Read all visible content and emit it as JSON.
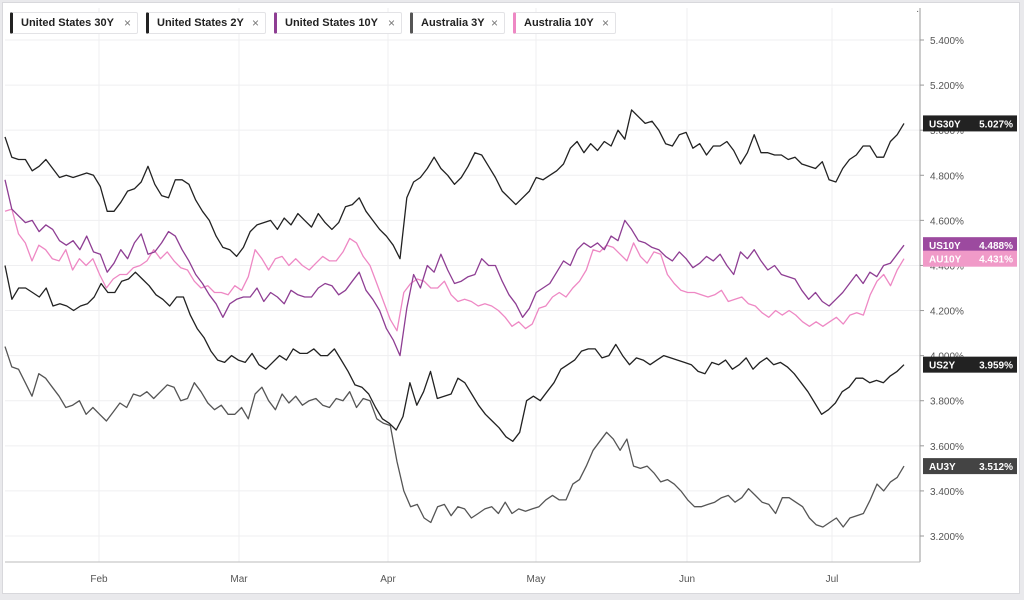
{
  "legend": [
    {
      "label": "United States 30Y",
      "color": "#222222"
    },
    {
      "label": "United States 2Y",
      "color": "#222222"
    },
    {
      "label": "United States 10Y",
      "color": "#8e3e93"
    },
    {
      "label": "Australia 3Y",
      "color": "#555555"
    },
    {
      "label": "Australia 10Y",
      "color": "#ee88c4"
    }
  ],
  "close_glyph": "×",
  "top_mark": "·",
  "chart_data": {
    "type": "line",
    "ylim": [
      3.1,
      5.5
    ],
    "y_ticks": [
      "5.400%",
      "5.200%",
      "5.000%",
      "4.800%",
      "4.600%",
      "4.400%",
      "4.200%",
      "4.000%",
      "3.800%",
      "3.600%",
      "3.400%",
      "3.200%"
    ],
    "x_ticks": [
      "Feb",
      "Mar",
      "Apr",
      "May",
      "Jun",
      "Jul"
    ],
    "grid": true,
    "series": [
      {
        "name": "United States 30Y",
        "tag": "US30Y",
        "last": "5.027%",
        "color": "#222222",
        "tag_bg": "#222222",
        "values": [
          4.97,
          4.88,
          4.87,
          4.87,
          4.82,
          4.84,
          4.87,
          4.83,
          4.79,
          4.8,
          4.79,
          4.8,
          4.81,
          4.8,
          4.75,
          4.64,
          4.64,
          4.68,
          4.73,
          4.74,
          4.77,
          4.84,
          4.76,
          4.71,
          4.7,
          4.78,
          4.78,
          4.76,
          4.69,
          4.64,
          4.6,
          4.53,
          4.48,
          4.47,
          4.44,
          4.48,
          4.55,
          4.58,
          4.59,
          4.6,
          4.56,
          4.61,
          4.58,
          4.63,
          4.6,
          4.57,
          4.63,
          4.59,
          4.56,
          4.59,
          4.66,
          4.67,
          4.7,
          4.64,
          4.6,
          4.56,
          4.53,
          4.49,
          4.43,
          4.7,
          4.77,
          4.79,
          4.83,
          4.88,
          4.83,
          4.8,
          4.76,
          4.79,
          4.84,
          4.9,
          4.89,
          4.84,
          4.79,
          4.73,
          4.7,
          4.67,
          4.7,
          4.73,
          4.79,
          4.78,
          4.8,
          4.82,
          4.85,
          4.92,
          4.95,
          4.9,
          4.94,
          4.91,
          4.95,
          4.93,
          5.0,
          4.96,
          5.09,
          5.06,
          5.03,
          5.04,
          5.0,
          4.94,
          4.93,
          4.98,
          4.99,
          4.92,
          4.94,
          4.89,
          4.93,
          4.93,
          4.95,
          4.91,
          4.85,
          4.9,
          4.98,
          4.9,
          4.9,
          4.89,
          4.89,
          4.87,
          4.88,
          4.85,
          4.84,
          4.83,
          4.86,
          4.78,
          4.77,
          4.83,
          4.87,
          4.89,
          4.93,
          4.93,
          4.88,
          4.88,
          4.95,
          4.98,
          5.03
        ]
      },
      {
        "name": "United States 2Y",
        "tag": "US2Y",
        "last": "3.959%",
        "color": "#222222",
        "tag_bg": "#222222",
        "values": [
          4.4,
          4.25,
          4.3,
          4.3,
          4.28,
          4.26,
          4.3,
          4.22,
          4.23,
          4.22,
          4.2,
          4.22,
          4.23,
          4.26,
          4.32,
          4.28,
          4.28,
          4.33,
          4.34,
          4.37,
          4.34,
          4.31,
          4.27,
          4.25,
          4.22,
          4.26,
          4.26,
          4.18,
          4.12,
          4.08,
          4.02,
          3.98,
          3.97,
          4.0,
          3.98,
          3.97,
          4.01,
          3.96,
          3.94,
          3.97,
          4.0,
          3.98,
          4.03,
          4.01,
          4.01,
          4.03,
          4.0,
          4.0,
          4.03,
          3.98,
          3.93,
          3.87,
          3.86,
          3.83,
          3.77,
          3.72,
          3.7,
          3.67,
          3.73,
          3.88,
          3.78,
          3.84,
          3.93,
          3.81,
          3.82,
          3.83,
          3.9,
          3.88,
          3.83,
          3.78,
          3.74,
          3.71,
          3.68,
          3.64,
          3.62,
          3.66,
          3.8,
          3.82,
          3.8,
          3.84,
          3.88,
          3.94,
          3.96,
          3.98,
          4.02,
          4.03,
          4.03,
          3.99,
          4.0,
          4.05,
          4.0,
          3.96,
          3.99,
          3.98,
          3.96,
          3.98,
          4.0,
          3.99,
          3.98,
          3.97,
          3.96,
          3.93,
          3.92,
          3.97,
          3.96,
          3.98,
          3.94,
          3.96,
          3.99,
          3.94,
          3.97,
          3.99,
          3.96,
          3.97,
          3.95,
          3.92,
          3.88,
          3.84,
          3.79,
          3.74,
          3.76,
          3.79,
          3.84,
          3.86,
          3.9,
          3.9,
          3.88,
          3.89,
          3.88,
          3.91,
          3.93,
          3.96
        ]
      },
      {
        "name": "United States 10Y",
        "tag": "US10Y",
        "last": "4.488%",
        "color": "#8e3e93",
        "tag_bg": "#9c4a9f",
        "values": [
          4.78,
          4.65,
          4.62,
          4.59,
          4.6,
          4.55,
          4.58,
          4.56,
          4.51,
          4.49,
          4.51,
          4.47,
          4.53,
          4.46,
          4.45,
          4.37,
          4.41,
          4.47,
          4.43,
          4.5,
          4.54,
          4.45,
          4.46,
          4.5,
          4.55,
          4.53,
          4.47,
          4.42,
          4.36,
          4.32,
          4.27,
          4.23,
          4.17,
          4.23,
          4.25,
          4.26,
          4.26,
          4.3,
          4.24,
          4.28,
          4.26,
          4.23,
          4.29,
          4.27,
          4.26,
          4.26,
          4.3,
          4.32,
          4.31,
          4.27,
          4.29,
          4.33,
          4.37,
          4.29,
          4.25,
          4.2,
          4.12,
          4.07,
          4.0,
          4.21,
          4.36,
          4.3,
          4.4,
          4.37,
          4.45,
          4.38,
          4.32,
          4.33,
          4.35,
          4.36,
          4.43,
          4.4,
          4.4,
          4.33,
          4.27,
          4.23,
          4.17,
          4.21,
          4.28,
          4.3,
          4.32,
          4.37,
          4.42,
          4.4,
          4.47,
          4.5,
          4.48,
          4.5,
          4.47,
          4.53,
          4.51,
          4.6,
          4.56,
          4.51,
          4.5,
          4.48,
          4.47,
          4.44,
          4.42,
          4.46,
          4.43,
          4.39,
          4.41,
          4.44,
          4.42,
          4.45,
          4.4,
          4.36,
          4.46,
          4.43,
          4.47,
          4.42,
          4.38,
          4.4,
          4.36,
          4.35,
          4.34,
          4.29,
          4.25,
          4.28,
          4.24,
          4.22,
          4.25,
          4.28,
          4.32,
          4.36,
          4.32,
          4.37,
          4.35,
          4.4,
          4.41,
          4.45,
          4.49
        ]
      },
      {
        "name": "Australia 3Y",
        "tag": "AU3Y",
        "last": "3.512%",
        "color": "#555555",
        "tag_bg": "#444444",
        "values": [
          4.04,
          3.95,
          3.94,
          3.88,
          3.82,
          3.92,
          3.9,
          3.86,
          3.82,
          3.77,
          3.78,
          3.8,
          3.74,
          3.77,
          3.74,
          3.71,
          3.75,
          3.79,
          3.77,
          3.83,
          3.82,
          3.84,
          3.81,
          3.84,
          3.87,
          3.86,
          3.8,
          3.81,
          3.88,
          3.84,
          3.79,
          3.76,
          3.78,
          3.74,
          3.74,
          3.77,
          3.72,
          3.83,
          3.86,
          3.8,
          3.76,
          3.83,
          3.79,
          3.82,
          3.78,
          3.8,
          3.81,
          3.78,
          3.77,
          3.81,
          3.8,
          3.84,
          3.77,
          3.81,
          3.8,
          3.72,
          3.7,
          3.69,
          3.53,
          3.4,
          3.33,
          3.34,
          3.28,
          3.26,
          3.33,
          3.34,
          3.29,
          3.33,
          3.32,
          3.28,
          3.3,
          3.32,
          3.33,
          3.3,
          3.35,
          3.3,
          3.32,
          3.31,
          3.32,
          3.33,
          3.36,
          3.38,
          3.36,
          3.36,
          3.43,
          3.45,
          3.51,
          3.58,
          3.62,
          3.66,
          3.63,
          3.58,
          3.63,
          3.51,
          3.5,
          3.51,
          3.48,
          3.44,
          3.45,
          3.43,
          3.4,
          3.36,
          3.33,
          3.33,
          3.34,
          3.35,
          3.37,
          3.38,
          3.35,
          3.37,
          3.41,
          3.38,
          3.35,
          3.34,
          3.3,
          3.37,
          3.37,
          3.35,
          3.33,
          3.28,
          3.25,
          3.24,
          3.26,
          3.28,
          3.24,
          3.28,
          3.29,
          3.3,
          3.36,
          3.43,
          3.4,
          3.44,
          3.46,
          3.51
        ]
      },
      {
        "name": "Australia 10Y",
        "tag": "AU10Y",
        "last": "4.431%",
        "color": "#ee88c4",
        "tag_bg": "#f09ac8",
        "values": [
          4.64,
          4.65,
          4.54,
          4.5,
          4.42,
          4.49,
          4.47,
          4.43,
          4.42,
          4.47,
          4.38,
          4.43,
          4.4,
          4.43,
          4.36,
          4.3,
          4.34,
          4.36,
          4.36,
          4.39,
          4.4,
          4.42,
          4.47,
          4.43,
          4.46,
          4.42,
          4.39,
          4.38,
          4.33,
          4.3,
          4.31,
          4.28,
          4.28,
          4.27,
          4.31,
          4.29,
          4.35,
          4.47,
          4.43,
          4.38,
          4.43,
          4.44,
          4.4,
          4.43,
          4.4,
          4.38,
          4.41,
          4.44,
          4.42,
          4.42,
          4.46,
          4.52,
          4.5,
          4.44,
          4.4,
          4.32,
          4.24,
          4.16,
          4.11,
          4.28,
          4.32,
          4.34,
          4.33,
          4.3,
          4.3,
          4.33,
          4.27,
          4.24,
          4.25,
          4.24,
          4.22,
          4.23,
          4.22,
          4.2,
          4.17,
          4.13,
          4.15,
          4.12,
          4.14,
          4.21,
          4.22,
          4.26,
          4.28,
          4.26,
          4.3,
          4.33,
          4.38,
          4.47,
          4.46,
          4.49,
          4.48,
          4.45,
          4.42,
          4.5,
          4.44,
          4.41,
          4.46,
          4.45,
          4.36,
          4.32,
          4.29,
          4.28,
          4.28,
          4.27,
          4.26,
          4.27,
          4.29,
          4.24,
          4.25,
          4.26,
          4.23,
          4.22,
          4.19,
          4.17,
          4.2,
          4.18,
          4.2,
          4.18,
          4.15,
          4.13,
          4.15,
          4.13,
          4.15,
          4.17,
          4.14,
          4.18,
          4.19,
          4.18,
          4.27,
          4.33,
          4.36,
          4.31,
          4.38,
          4.43
        ]
      }
    ]
  }
}
